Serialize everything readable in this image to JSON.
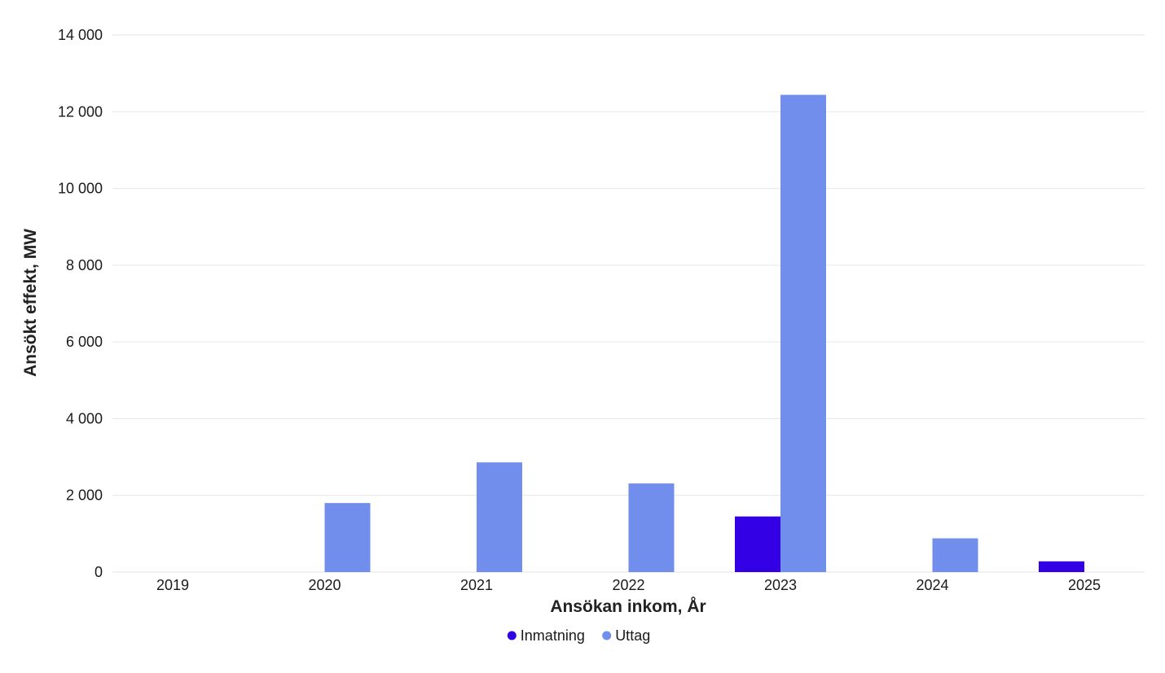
{
  "chart_data": {
    "type": "bar",
    "title": "",
    "xlabel": "Ansökan inkom, År",
    "ylabel": "Ansökt effekt, MW",
    "categories": [
      "2019",
      "2020",
      "2021",
      "2022",
      "2023",
      "2024",
      "2025"
    ],
    "series": [
      {
        "name": "Inmatning",
        "color": "#3300e6",
        "values": [
          0,
          0,
          0,
          0,
          1450,
          0,
          280
        ]
      },
      {
        "name": "Uttag",
        "color": "#728eec",
        "values": [
          0,
          1800,
          2860,
          2310,
          12440,
          880,
          0
        ]
      }
    ],
    "yticks": [
      "0",
      "2 000",
      "4 000",
      "6 000",
      "8 000",
      "10 000",
      "12 000",
      "14 000"
    ],
    "ytick_values": [
      0,
      2000,
      4000,
      6000,
      8000,
      10000,
      12000,
      14000
    ],
    "ylim": [
      0,
      14000
    ],
    "grid": true,
    "legend_position": "bottom-center"
  }
}
